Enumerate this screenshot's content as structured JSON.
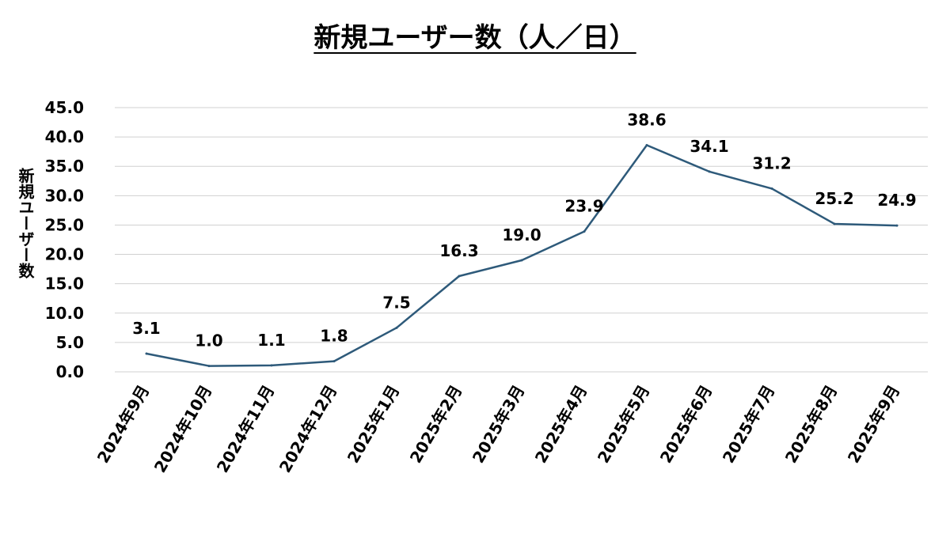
{
  "chart_data": {
    "type": "line",
    "title": "新規ユーザー数（人／日）",
    "ylabel": "新規ユーザー数",
    "xlabel": "",
    "categories": [
      "2024年9月",
      "2024年10月",
      "2024年11月",
      "2024年12月",
      "2025年1月",
      "2025年2月",
      "2025年3月",
      "2025年4月",
      "2025年5月",
      "2025年6月",
      "2025年7月",
      "2025年8月",
      "2025年9月"
    ],
    "series": [
      {
        "values": [
          3.1,
          1.0,
          1.1,
          1.8,
          7.5,
          16.3,
          19.0,
          23.9,
          38.6,
          34.1,
          31.2,
          25.2,
          24.9
        ],
        "labels": [
          "3.1",
          "1.0",
          "1.1",
          "1.8",
          "7.5",
          "16.3",
          "19.0",
          "23.9",
          "38.6",
          "34.1",
          "31.2",
          "25.2",
          "24.9"
        ],
        "color": "#2e5a7a"
      }
    ],
    "ylim": [
      0,
      45
    ],
    "yticks": [
      "0.0",
      "5.0",
      "10.0",
      "15.0",
      "20.0",
      "25.0",
      "30.0",
      "35.0",
      "40.0",
      "45.0"
    ],
    "grid": true,
    "legend": "none",
    "gridline_color": "#d0d0d0"
  }
}
